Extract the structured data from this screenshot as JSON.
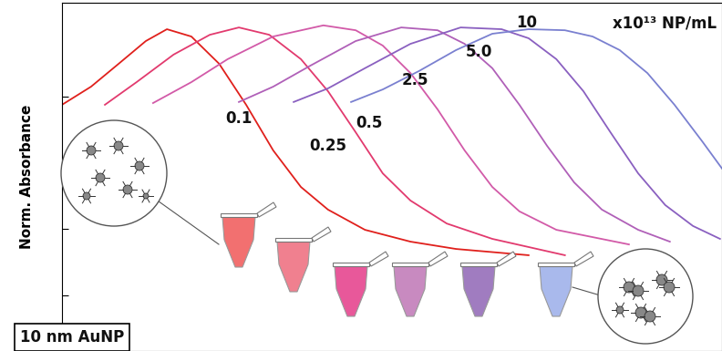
{
  "chart_data": {
    "type": "line",
    "y_label": "Norm. Absorbance",
    "annotations": [
      "x10¹³ NP/mL",
      "10 nm AuNP"
    ],
    "xlim": [
      0,
      100
    ],
    "ylim": [
      0,
      1
    ],
    "yticks": [
      0.16,
      0.35,
      0.55,
      0.73
    ],
    "tick_labels": false,
    "grid": false,
    "series": [
      {
        "name": "0.1",
        "color": "#e0201c",
        "x": [
          0,
          4.4,
          8.6,
          12.7,
          15.9,
          19.6,
          23.8,
          27.9,
          32.0,
          36.2,
          40.3,
          45.9,
          52.8,
          59.7,
          70.7
        ],
        "values": [
          0.707,
          0.759,
          0.825,
          0.89,
          0.924,
          0.903,
          0.825,
          0.707,
          0.576,
          0.471,
          0.406,
          0.348,
          0.314,
          0.293,
          0.275
        ]
      },
      {
        "name": "0.25",
        "color": "#e23a6e",
        "x": [
          6.5,
          11.3,
          16.9,
          22.4,
          26.8,
          31.4,
          36.2,
          40.3,
          44.5,
          48.6,
          52.8,
          58.3,
          65.2,
          76.2
        ],
        "values": [
          0.707,
          0.772,
          0.851,
          0.908,
          0.929,
          0.908,
          0.838,
          0.746,
          0.628,
          0.51,
          0.432,
          0.366,
          0.322,
          0.275
        ]
      },
      {
        "name": "0.5",
        "color": "#d25aa8",
        "x": [
          13.8,
          19.6,
          25.1,
          32.0,
          39.6,
          44.5,
          48.6,
          52.8,
          56.9,
          61.0,
          65.2,
          69.3,
          74.9,
          85.9
        ],
        "values": [
          0.712,
          0.772,
          0.838,
          0.903,
          0.935,
          0.921,
          0.877,
          0.798,
          0.694,
          0.576,
          0.471,
          0.401,
          0.348,
          0.306
        ]
      },
      {
        "name": "2.5",
        "color": "#b060b8",
        "x": [
          26.8,
          32.0,
          37.6,
          44.5,
          51.4,
          56.9,
          61.0,
          65.2,
          69.3,
          73.5,
          77.6,
          81.8,
          87.3,
          92.1
        ],
        "values": [
          0.715,
          0.759,
          0.819,
          0.89,
          0.929,
          0.921,
          0.882,
          0.812,
          0.707,
          0.589,
          0.484,
          0.406,
          0.348,
          0.314
        ]
      },
      {
        "name": "5.0",
        "color": "#8a60c0",
        "x": [
          35.1,
          40.3,
          45.9,
          52.8,
          60.4,
          66.6,
          70.7,
          74.9,
          79.0,
          83.1,
          87.3,
          91.4,
          95.6,
          99.7
        ],
        "values": [
          0.715,
          0.754,
          0.812,
          0.882,
          0.929,
          0.924,
          0.898,
          0.838,
          0.746,
          0.628,
          0.51,
          0.419,
          0.359,
          0.322
        ]
      },
      {
        "name": "10",
        "color": "#7a80d0",
        "x": [
          43.8,
          48.6,
          54.1,
          59.7,
          65.2,
          70.7,
          76.2,
          80.4,
          84.5,
          88.7,
          92.8,
          97.0,
          100
        ],
        "values": [
          0.715,
          0.751,
          0.804,
          0.864,
          0.911,
          0.924,
          0.921,
          0.903,
          0.864,
          0.798,
          0.707,
          0.602,
          0.524
        ]
      }
    ]
  }
}
